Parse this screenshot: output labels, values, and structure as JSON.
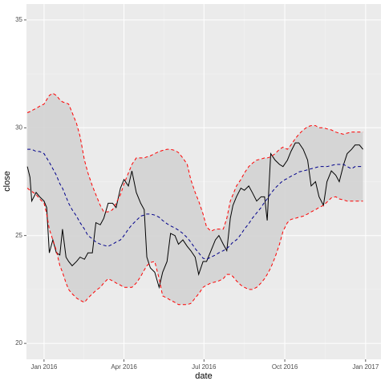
{
  "chart_data": {
    "type": "line",
    "x_label": "date",
    "y_label": "close",
    "xlim": [
      -20,
      383.5
    ],
    "ylim": [
      19.26,
      35.74
    ],
    "xticks": [
      {
        "value": 0,
        "label": "Jan 2016"
      },
      {
        "value": 91,
        "label": "Apr 2016"
      },
      {
        "value": 182,
        "label": "Jul 2016"
      },
      {
        "value": 274,
        "label": "Oct 2016"
      },
      {
        "value": 366,
        "label": "Jan 2017"
      }
    ],
    "yticks": [
      20,
      25,
      30,
      35
    ],
    "grid": true,
    "band_fill": "#d3d3d3",
    "x": [
      -19,
      -16,
      -14,
      -9,
      -5,
      0,
      3,
      6,
      10,
      14,
      18,
      21,
      25,
      28,
      32,
      37,
      41,
      46,
      50,
      55,
      59,
      64,
      68,
      73,
      78,
      82,
      87,
      91,
      96,
      100,
      105,
      110,
      114,
      117,
      121,
      126,
      131,
      135,
      140,
      144,
      149,
      153,
      158,
      163,
      167,
      172,
      176,
      181,
      185,
      190,
      195,
      199,
      204,
      208,
      212,
      215,
      219,
      224,
      228,
      233,
      237,
      242,
      247,
      251,
      254,
      258,
      263,
      268,
      272,
      277,
      281,
      286,
      290,
      295,
      300,
      304,
      309,
      313,
      318,
      322,
      327,
      332,
      336,
      341,
      345,
      350,
      354,
      359,
      363
    ],
    "series": [
      {
        "color": "#000000",
        "dash": "none",
        "values": [
          28.2,
          27.7,
          26.6,
          27.0,
          26.8,
          26.6,
          26.3,
          24.2,
          24.8,
          24.2,
          24.1,
          25.3,
          24.0,
          23.8,
          23.6,
          23.8,
          24.0,
          23.9,
          24.2,
          24.2,
          25.6,
          25.5,
          25.8,
          26.5,
          26.5,
          26.3,
          27.2,
          27.6,
          27.3,
          28.0,
          27.0,
          26.5,
          26.2,
          24.0,
          23.5,
          23.3,
          22.6,
          23.3,
          23.8,
          25.1,
          25.0,
          24.6,
          24.8,
          24.5,
          24.3,
          24.0,
          23.2,
          23.8,
          23.8,
          24.3,
          24.8,
          25.0,
          24.6,
          24.3,
          25.8,
          26.4,
          26.8,
          27.2,
          27.1,
          27.3,
          27.0,
          26.6,
          26.8,
          26.8,
          25.7,
          28.8,
          28.5,
          28.3,
          28.2,
          28.5,
          28.9,
          29.3,
          29.3,
          29.0,
          28.5,
          27.3,
          27.5,
          26.8,
          26.4,
          27.5,
          28.0,
          27.8,
          27.5,
          28.3,
          28.8,
          29.0,
          29.2,
          29.2,
          29.0
        ]
      },
      {
        "color": "#00008b",
        "dash": "4,3",
        "values": [
          29.0,
          29.0,
          29.0,
          28.9,
          28.9,
          28.8,
          28.6,
          28.4,
          28.1,
          27.8,
          27.4,
          27.2,
          26.8,
          26.5,
          26.2,
          25.9,
          25.6,
          25.3,
          25.0,
          24.85,
          24.7,
          24.6,
          24.55,
          24.5,
          24.6,
          24.7,
          24.8,
          25.0,
          25.3,
          25.5,
          25.7,
          25.9,
          25.95,
          26.0,
          26.0,
          25.95,
          25.85,
          25.7,
          25.55,
          25.45,
          25.35,
          25.25,
          25.1,
          24.9,
          24.7,
          24.4,
          24.2,
          23.95,
          23.9,
          24.0,
          24.1,
          24.2,
          24.3,
          24.4,
          24.55,
          24.7,
          24.8,
          25.05,
          25.3,
          25.55,
          25.8,
          26.05,
          26.3,
          26.55,
          26.7,
          26.95,
          27.2,
          27.4,
          27.55,
          27.65,
          27.75,
          27.85,
          27.95,
          28.0,
          28.05,
          28.1,
          28.15,
          28.2,
          28.2,
          28.2,
          28.25,
          28.3,
          28.3,
          28.3,
          28.2,
          28.1,
          28.2,
          28.2,
          28.2
        ]
      },
      {
        "color": "#ff0000",
        "dash": "4,3",
        "values": [
          30.7,
          30.75,
          30.8,
          30.9,
          31.0,
          31.1,
          31.3,
          31.5,
          31.6,
          31.5,
          31.3,
          31.2,
          31.15,
          31.1,
          30.7,
          30.2,
          29.6,
          28.5,
          27.9,
          27.3,
          26.9,
          26.4,
          26.1,
          26.1,
          26.2,
          26.5,
          26.9,
          27.4,
          27.9,
          28.3,
          28.6,
          28.6,
          28.6,
          28.65,
          28.7,
          28.8,
          28.9,
          28.95,
          29.0,
          29.0,
          28.95,
          28.85,
          28.6,
          28.3,
          27.6,
          27.0,
          26.6,
          26.0,
          25.4,
          25.2,
          25.3,
          25.3,
          25.3,
          25.8,
          26.6,
          26.9,
          27.3,
          27.6,
          27.9,
          28.2,
          28.35,
          28.5,
          28.55,
          28.6,
          28.6,
          28.65,
          28.8,
          29.0,
          29.1,
          29.0,
          29.2,
          29.5,
          29.7,
          29.9,
          30.05,
          30.1,
          30.1,
          30.0,
          30.0,
          29.95,
          29.9,
          29.8,
          29.75,
          29.7,
          29.75,
          29.8,
          29.8,
          29.8,
          29.8
        ]
      },
      {
        "color": "#ff0000",
        "dash": "4,3",
        "values": [
          27.2,
          27.1,
          27.05,
          26.9,
          26.7,
          26.5,
          26.0,
          25.3,
          24.8,
          24.3,
          23.6,
          23.3,
          22.8,
          22.5,
          22.3,
          22.1,
          22.0,
          21.9,
          22.1,
          22.3,
          22.45,
          22.6,
          22.8,
          23.0,
          22.9,
          22.8,
          22.7,
          22.6,
          22.6,
          22.6,
          22.8,
          23.1,
          23.4,
          23.6,
          23.75,
          23.8,
          23.0,
          22.2,
          22.1,
          22.0,
          21.9,
          21.8,
          21.8,
          21.8,
          21.85,
          22.1,
          22.3,
          22.6,
          22.7,
          22.8,
          22.85,
          22.9,
          23.0,
          23.2,
          23.2,
          23.1,
          22.9,
          22.7,
          22.6,
          22.5,
          22.5,
          22.6,
          22.8,
          23.0,
          23.2,
          23.5,
          24.0,
          24.6,
          25.2,
          25.6,
          25.75,
          25.8,
          25.85,
          25.9,
          26.0,
          26.1,
          26.2,
          26.3,
          26.4,
          26.55,
          26.75,
          26.8,
          26.7,
          26.65,
          26.6,
          26.6,
          26.6,
          26.6,
          26.6
        ]
      }
    ]
  }
}
